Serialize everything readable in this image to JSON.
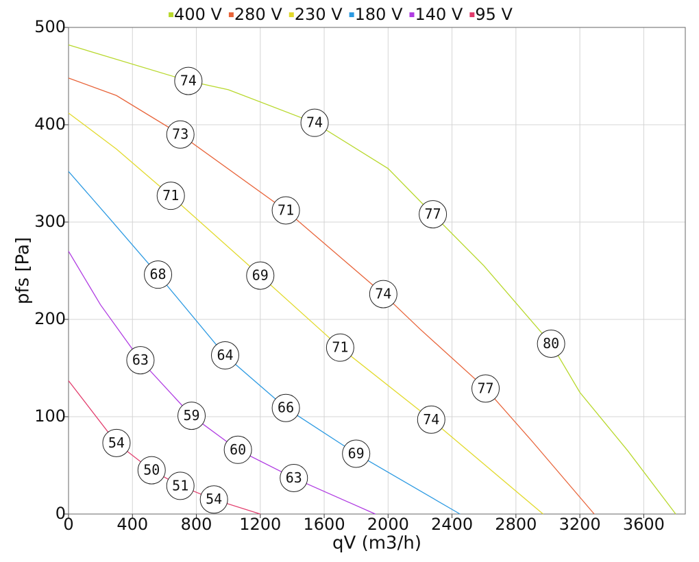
{
  "chart_data": {
    "type": "line",
    "xlabel": "qV (m3/h)",
    "ylabel": "pfs [Pa]",
    "xlim": [
      0,
      3860
    ],
    "ylim": [
      0,
      500
    ],
    "xticks": [
      0,
      400,
      800,
      1200,
      1600,
      2000,
      2400,
      2800,
      3200,
      3600
    ],
    "yticks": [
      0,
      100,
      200,
      300,
      400,
      500
    ],
    "grid": true,
    "legend": "top",
    "series": [
      {
        "name": "400 V",
        "color": "#b8d82c",
        "x": [
          0,
          750,
          1000,
          1540,
          2000,
          2280,
          2600,
          3020,
          3200,
          3500,
          3800
        ],
        "values": [
          482,
          445,
          436,
          402,
          355,
          308,
          255,
          175,
          125,
          65,
          0
        ]
      },
      {
        "name": "280 V",
        "color": "#e8643a",
        "x": [
          0,
          300,
          700,
          1360,
          1970,
          2200,
          2610,
          2900,
          3290
        ],
        "values": [
          448,
          430,
          390,
          312,
          226,
          190,
          129,
          75,
          0
        ]
      },
      {
        "name": "230 V",
        "color": "#e2da2c",
        "x": [
          0,
          300,
          640,
          1200,
          1700,
          2270,
          2970
        ],
        "values": [
          412,
          375,
          327,
          245,
          171,
          97,
          0
        ]
      },
      {
        "name": "180 V",
        "color": "#2c9ae2",
        "x": [
          0,
          250,
          560,
          980,
          1360,
          1800,
          2450
        ],
        "values": [
          352,
          305,
          246,
          163,
          109,
          62,
          0
        ]
      },
      {
        "name": "140 V",
        "color": "#b03ce2",
        "x": [
          0,
          200,
          450,
          770,
          1060,
          1410,
          1920
        ],
        "values": [
          270,
          215,
          158,
          101,
          66,
          37,
          0
        ]
      },
      {
        "name": "95 V",
        "color": "#e23c6c",
        "x": [
          0,
          300,
          520,
          700,
          910,
          1200
        ],
        "values": [
          137,
          73,
          45,
          29,
          15,
          0
        ]
      }
    ],
    "annotations": [
      {
        "x": 750,
        "y": 445,
        "text": 74
      },
      {
        "x": 1540,
        "y": 402,
        "text": 74
      },
      {
        "x": 2280,
        "y": 308,
        "text": 77
      },
      {
        "x": 3020,
        "y": 175,
        "text": 80
      },
      {
        "x": 700,
        "y": 390,
        "text": 73
      },
      {
        "x": 1360,
        "y": 312,
        "text": 71
      },
      {
        "x": 1970,
        "y": 226,
        "text": 74
      },
      {
        "x": 2610,
        "y": 129,
        "text": 77
      },
      {
        "x": 640,
        "y": 327,
        "text": 71
      },
      {
        "x": 1200,
        "y": 245,
        "text": 69
      },
      {
        "x": 1700,
        "y": 171,
        "text": 71
      },
      {
        "x": 2270,
        "y": 97,
        "text": 74
      },
      {
        "x": 560,
        "y": 246,
        "text": 68
      },
      {
        "x": 980,
        "y": 163,
        "text": 64
      },
      {
        "x": 1360,
        "y": 109,
        "text": 66
      },
      {
        "x": 1800,
        "y": 62,
        "text": 69
      },
      {
        "x": 450,
        "y": 158,
        "text": 63
      },
      {
        "x": 770,
        "y": 101,
        "text": 59
      },
      {
        "x": 1060,
        "y": 66,
        "text": 60
      },
      {
        "x": 1410,
        "y": 37,
        "text": 63
      },
      {
        "x": 300,
        "y": 73,
        "text": 54
      },
      {
        "x": 520,
        "y": 45,
        "text": 50
      },
      {
        "x": 700,
        "y": 29,
        "text": 51
      },
      {
        "x": 910,
        "y": 15,
        "text": 54
      }
    ]
  }
}
